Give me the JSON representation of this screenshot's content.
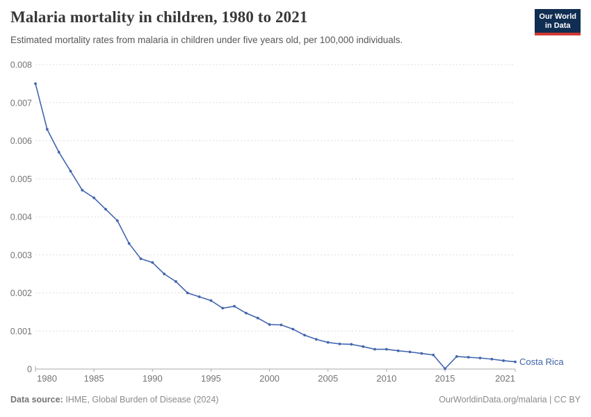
{
  "header": {
    "title": "Malaria mortality in children, 1980 to 2021",
    "subtitle": "Estimated mortality rates from malaria in children under five years old, per 100,000 individuals.",
    "logo_line1": "Our World",
    "logo_line2": "in Data",
    "logo_bg_color": "#102d52",
    "logo_accent_color": "#cf3830"
  },
  "chart_data": {
    "type": "line",
    "title": "Malaria mortality in children, 1980 to 2021",
    "x": [
      1980,
      1981,
      1982,
      1983,
      1984,
      1985,
      1986,
      1987,
      1988,
      1989,
      1990,
      1991,
      1992,
      1993,
      1994,
      1995,
      1996,
      1997,
      1998,
      1999,
      2000,
      2001,
      2002,
      2003,
      2004,
      2005,
      2006,
      2007,
      2008,
      2009,
      2010,
      2011,
      2012,
      2013,
      2014,
      2015,
      2016,
      2017,
      2018,
      2019,
      2020,
      2021
    ],
    "series": [
      {
        "name": "Costa Rica",
        "values": [
          0.0075,
          0.0063,
          0.0057,
          0.0052,
          0.0047,
          0.0045,
          0.0042,
          0.0039,
          0.0033,
          0.0029,
          0.0028,
          0.0025,
          0.0023,
          0.002,
          0.0019,
          0.0018,
          0.0016,
          0.00165,
          0.00147,
          0.00134,
          0.00117,
          0.00116,
          0.00105,
          0.00089,
          0.00078,
          0.0007,
          0.00066,
          0.00065,
          0.00059,
          0.00052,
          0.00052,
          0.00048,
          0.00045,
          0.00041,
          0.00037,
          1e-05,
          0.00033,
          0.00031,
          0.00029,
          0.00026,
          0.00022,
          0.00019
        ]
      }
    ],
    "xlabel": "",
    "ylabel": "",
    "ylim": [
      0,
      0.008
    ],
    "yticks": [
      0,
      0.001,
      0.002,
      0.003,
      0.004,
      0.005,
      0.006,
      0.007,
      0.008
    ],
    "ytick_labels": [
      "0",
      "0.001",
      "0.002",
      "0.003",
      "0.004",
      "0.005",
      "0.006",
      "0.007",
      "0.008"
    ],
    "xticks": [
      1980,
      1985,
      1990,
      1995,
      2000,
      2005,
      2010,
      2015,
      2021
    ],
    "grid": "horizontal-dashed",
    "legend_position": "end-of-line-label",
    "colors": {
      "line": "#4265ae",
      "series_label": "#3d63a8",
      "grid": "#dcdcdc",
      "axis": "#a8a8a8",
      "tick_label": "#737373"
    }
  },
  "footer": {
    "source_label": "Data source:",
    "source_text": "IHME, Global Burden of Disease (2024)",
    "right_text": "OurWorldinData.org/malaria | CC BY"
  }
}
